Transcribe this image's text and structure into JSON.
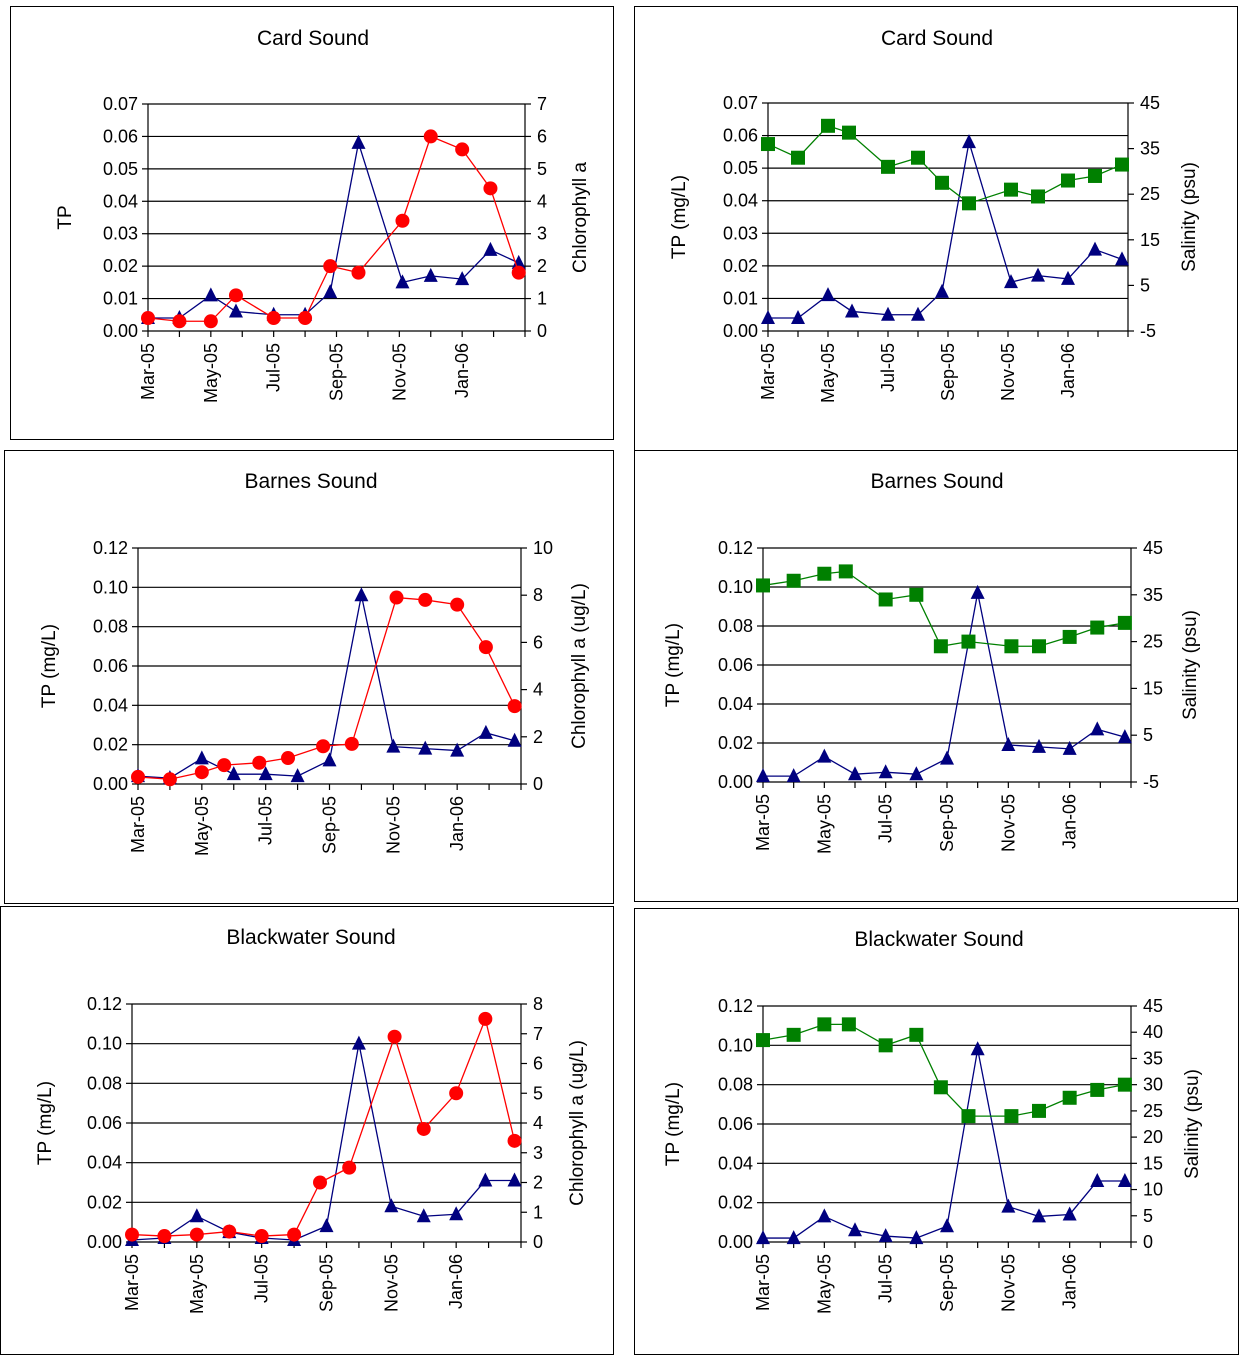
{
  "colors": {
    "tp": "#00007f",
    "chl": "#ff0000",
    "sal": "#008000"
  },
  "chart_data": [
    {
      "id": "card-chl",
      "type": "line",
      "title": "Card Sound",
      "ylabel": "TP",
      "y2label": "Chlorophyll a",
      "x": [
        0,
        1,
        2,
        3,
        4,
        5,
        6,
        7,
        8,
        9,
        10,
        11,
        12
      ],
      "xticks": [
        "Mar-05",
        "May-05",
        "Jul-05",
        "Sep-05",
        "Nov-05",
        "Jan-06"
      ],
      "xlim": [
        0,
        12
      ],
      "ylim": [
        0,
        0.07
      ],
      "yticks": [
        "0.00",
        "0.01",
        "0.02",
        "0.03",
        "0.04",
        "0.05",
        "0.06",
        "0.07"
      ],
      "y2lim": [
        0,
        7
      ],
      "y2ticks": [
        "0",
        "1",
        "2",
        "3",
        "4",
        "5",
        "6",
        "7"
      ],
      "series": [
        {
          "key": "tp",
          "axis": "left",
          "marker": "triangle",
          "x": [
            0,
            1,
            2,
            2.8,
            4,
            5,
            5.8,
            6.7,
            8.1,
            9,
            10,
            10.9,
            11.8
          ],
          "values": [
            0.004,
            0.004,
            0.011,
            0.006,
            0.005,
            0.005,
            0.012,
            0.058,
            0.015,
            0.017,
            0.016,
            0.025,
            0.021
          ]
        },
        {
          "key": "chl",
          "axis": "right",
          "marker": "circle",
          "x": [
            0,
            1,
            2,
            2.8,
            4,
            5,
            5.8,
            6.7,
            8.1,
            9,
            10,
            10.9,
            11.8
          ],
          "values": [
            0.4,
            0.3,
            0.3,
            1.1,
            0.4,
            0.4,
            2.0,
            1.8,
            3.4,
            6.0,
            5.6,
            4.4,
            1.8
          ]
        }
      ]
    },
    {
      "id": "card-sal",
      "type": "line",
      "title": "Card Sound",
      "ylabel": "TP (mg/L)",
      "y2label": "Salinity (psu)",
      "x": [
        0,
        1,
        2,
        3,
        4,
        5,
        6,
        7,
        8,
        9,
        10,
        11,
        12
      ],
      "xticks": [
        "Mar-05",
        "May-05",
        "Jul-05",
        "Sep-05",
        "Nov-05",
        "Jan-06"
      ],
      "xlim": [
        0,
        12
      ],
      "ylim": [
        0,
        0.07
      ],
      "yticks": [
        "0.00",
        "0.01",
        "0.02",
        "0.03",
        "0.04",
        "0.05",
        "0.06",
        "0.07"
      ],
      "y2lim": [
        -5,
        45
      ],
      "y2ticks": [
        "-5",
        "5",
        "15",
        "25",
        "35",
        "45"
      ],
      "series": [
        {
          "key": "tp",
          "axis": "left",
          "marker": "triangle",
          "x": [
            0,
            1,
            2,
            2.8,
            4,
            5,
            5.8,
            6.7,
            8.1,
            9,
            10,
            10.9,
            11.8
          ],
          "values": [
            0.004,
            0.004,
            0.011,
            0.006,
            0.005,
            0.005,
            0.012,
            0.058,
            0.015,
            0.017,
            0.016,
            0.025,
            0.022
          ]
        },
        {
          "key": "sal",
          "axis": "right",
          "marker": "square",
          "x": [
            0,
            1,
            2,
            2.7,
            4,
            5,
            5.8,
            6.7,
            8.1,
            9,
            10,
            10.9,
            11.8
          ],
          "values": [
            36,
            33,
            40,
            38.5,
            31,
            33,
            27.5,
            23,
            26,
            24.5,
            28,
            29,
            31.5
          ]
        }
      ]
    },
    {
      "id": "barnes-chl",
      "type": "line",
      "title": "Barnes Sound",
      "ylabel": "TP (mg/L)",
      "y2label": "Chlorophyll a (ug/L)",
      "x": [
        0,
        1,
        2,
        3,
        4,
        5,
        6,
        7,
        8,
        9,
        10,
        11,
        12
      ],
      "xticks": [
        "Mar-05",
        "May-05",
        "Jul-05",
        "Sep-05",
        "Nov-05",
        "Jan-06"
      ],
      "xlim": [
        0,
        12
      ],
      "ylim": [
        0,
        0.12
      ],
      "yticks": [
        "0.00",
        "0.02",
        "0.04",
        "0.06",
        "0.08",
        "0.10",
        "0.12"
      ],
      "y2lim": [
        0,
        10
      ],
      "y2ticks": [
        "0",
        "2",
        "4",
        "6",
        "8",
        "10"
      ],
      "series": [
        {
          "key": "tp",
          "axis": "left",
          "marker": "triangle",
          "x": [
            0,
            1,
            2,
            3,
            4,
            5,
            6,
            7,
            8,
            9,
            10,
            10.9,
            11.8
          ],
          "values": [
            0.004,
            0.003,
            0.013,
            0.005,
            0.005,
            0.004,
            0.012,
            0.096,
            0.019,
            0.018,
            0.017,
            0.026,
            0.022
          ]
        },
        {
          "key": "chl",
          "axis": "right",
          "marker": "circle",
          "x": [
            0,
            1,
            2,
            2.7,
            3.8,
            4.7,
            5.8,
            6.7,
            8.1,
            9,
            10,
            10.9,
            11.8
          ],
          "values": [
            0.3,
            0.2,
            0.5,
            0.8,
            0.9,
            1.1,
            1.6,
            1.7,
            7.9,
            7.8,
            7.6,
            5.8,
            3.3
          ]
        }
      ]
    },
    {
      "id": "barnes-sal",
      "type": "line",
      "title": "Barnes Sound",
      "ylabel": "TP (mg/L)",
      "y2label": "Salinity (psu)",
      "x": [
        0,
        1,
        2,
        3,
        4,
        5,
        6,
        7,
        8,
        9,
        10,
        11,
        12
      ],
      "xticks": [
        "Mar-05",
        "May-05",
        "Jul-05",
        "Sep-05",
        "Nov-05",
        "Jan-06"
      ],
      "xlim": [
        0,
        12
      ],
      "ylim": [
        0,
        0.12
      ],
      "yticks": [
        "0.00",
        "0.02",
        "0.04",
        "0.06",
        "0.08",
        "0.10",
        "0.12"
      ],
      "y2lim": [
        -5,
        45
      ],
      "y2ticks": [
        "-5",
        "5",
        "15",
        "25",
        "35",
        "45"
      ],
      "series": [
        {
          "key": "tp",
          "axis": "left",
          "marker": "triangle",
          "x": [
            0,
            1,
            2,
            3,
            4,
            5,
            6,
            7,
            8,
            9,
            10,
            10.9,
            11.8
          ],
          "values": [
            0.003,
            0.003,
            0.013,
            0.004,
            0.005,
            0.004,
            0.012,
            0.097,
            0.019,
            0.018,
            0.017,
            0.027,
            0.023
          ]
        },
        {
          "key": "sal",
          "axis": "right",
          "marker": "square",
          "x": [
            0,
            1,
            2,
            2.7,
            4,
            5,
            5.8,
            6.7,
            8.1,
            9,
            10,
            10.9,
            11.8
          ],
          "values": [
            37,
            38,
            39.5,
            40,
            34,
            35,
            24,
            25,
            24,
            24,
            26,
            28,
            29
          ]
        }
      ]
    },
    {
      "id": "blackwater-chl",
      "type": "line",
      "title": "Blackwater Sound",
      "ylabel": "TP (mg/L)",
      "y2label": "Chlorophyll a (ug/L)",
      "x": [
        0,
        1,
        2,
        3,
        4,
        5,
        6,
        7,
        8,
        9,
        10,
        11,
        12
      ],
      "xticks": [
        "Mar-05",
        "May-05",
        "Jul-05",
        "Sep-05",
        "Nov-05",
        "Jan-06"
      ],
      "xlim": [
        0,
        12
      ],
      "ylim": [
        0,
        0.12
      ],
      "yticks": [
        "0.00",
        "0.02",
        "0.04",
        "0.06",
        "0.08",
        "0.10",
        "0.12"
      ],
      "y2lim": [
        0,
        8
      ],
      "y2ticks": [
        "0",
        "1",
        "2",
        "3",
        "4",
        "5",
        "6",
        "7",
        "8"
      ],
      "series": [
        {
          "key": "tp",
          "axis": "left",
          "marker": "triangle",
          "x": [
            0,
            1,
            2,
            3,
            4,
            5,
            6,
            7,
            8,
            9,
            10,
            10.9,
            11.8
          ],
          "values": [
            0.001,
            0.002,
            0.013,
            0.005,
            0.002,
            0.001,
            0.008,
            0.1,
            0.018,
            0.013,
            0.014,
            0.031,
            0.031
          ]
        },
        {
          "key": "chl",
          "axis": "right",
          "marker": "circle",
          "x": [
            0,
            1,
            2,
            3,
            4,
            5,
            5.8,
            6.7,
            8.1,
            9,
            10,
            10.9,
            11.8
          ],
          "values": [
            0.25,
            0.2,
            0.25,
            0.35,
            0.2,
            0.25,
            2.0,
            2.5,
            6.9,
            3.8,
            5.0,
            7.5,
            3.4
          ]
        }
      ]
    },
    {
      "id": "blackwater-sal",
      "type": "line",
      "title": "Blackwater Sound",
      "ylabel": "TP (mg/L)",
      "y2label": "Salinity (psu)",
      "x": [
        0,
        1,
        2,
        3,
        4,
        5,
        6,
        7,
        8,
        9,
        10,
        11,
        12
      ],
      "xticks": [
        "Mar-05",
        "May-05",
        "Jul-05",
        "Sep-05",
        "Nov-05",
        "Jan-06"
      ],
      "xlim": [
        0,
        12
      ],
      "ylim": [
        0,
        0.12
      ],
      "yticks": [
        "0.00",
        "0.02",
        "0.04",
        "0.06",
        "0.08",
        "0.10",
        "0.12"
      ],
      "y2lim": [
        0,
        45
      ],
      "y2ticks": [
        "0",
        "5",
        "10",
        "15",
        "20",
        "25",
        "30",
        "35",
        "40",
        "45"
      ],
      "series": [
        {
          "key": "tp",
          "axis": "left",
          "marker": "triangle",
          "x": [
            0,
            1,
            2,
            3,
            4,
            5,
            6,
            7,
            8,
            9,
            10,
            10.9,
            11.8
          ],
          "values": [
            0.002,
            0.002,
            0.013,
            0.006,
            0.003,
            0.002,
            0.008,
            0.098,
            0.018,
            0.013,
            0.014,
            0.031,
            0.031
          ]
        },
        {
          "key": "sal",
          "axis": "right",
          "marker": "square",
          "x": [
            0,
            1,
            2,
            2.8,
            4,
            5,
            5.8,
            6.7,
            8.1,
            9,
            10,
            10.9,
            11.8
          ],
          "values": [
            38.5,
            39.5,
            41.5,
            41.5,
            37.5,
            39.5,
            29.5,
            24,
            24,
            25,
            27.5,
            29,
            30
          ]
        }
      ]
    }
  ]
}
